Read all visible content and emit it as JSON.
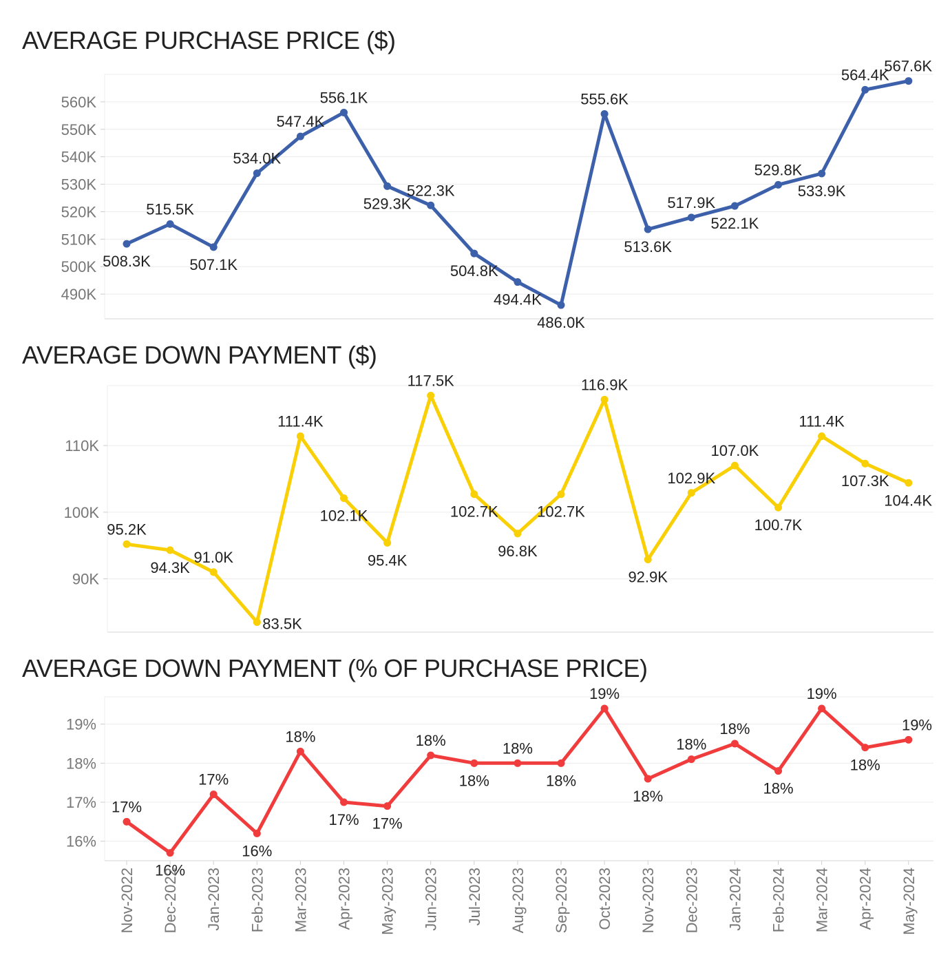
{
  "chart_data": [
    {
      "type": "line",
      "title": "AVERAGE PURCHASE PRICE ($)",
      "color": "#3d60ab",
      "categories": [
        "Nov-2022",
        "Dec-2022",
        "Jan-2023",
        "Feb-2023",
        "Mar-2023",
        "Apr-2023",
        "May-2023",
        "Jun-2023",
        "Jul-2023",
        "Aug-2023",
        "Sep-2023",
        "Oct-2023",
        "Nov-2023",
        "Dec-2023",
        "Jan-2024",
        "Feb-2024",
        "Mar-2024",
        "Apr-2024",
        "May-2024"
      ],
      "values": [
        508.3,
        515.5,
        507.1,
        534.0,
        547.4,
        556.1,
        529.3,
        522.3,
        504.8,
        494.4,
        486.0,
        555.6,
        513.6,
        517.9,
        522.1,
        529.8,
        533.9,
        564.4,
        567.6
      ],
      "value_unit": "K",
      "labels": [
        "508.3K",
        "515.5K",
        "507.1K",
        "534.0K",
        "547.4K",
        "556.1K",
        "529.3K",
        "522.3K",
        "504.8K",
        "494.4K",
        "486.0K",
        "555.6K",
        "513.6K",
        "517.9K",
        "522.1K",
        "529.8K",
        "533.9K",
        "564.4K",
        "567.6K"
      ],
      "label_positions": [
        "below",
        "above",
        "below",
        "above",
        "above",
        "above",
        "below",
        "above",
        "below",
        "below",
        "below",
        "above",
        "below",
        "above",
        "below",
        "above",
        "below",
        "above",
        "above"
      ],
      "yticks": [
        490,
        500,
        510,
        520,
        530,
        540,
        550,
        560
      ],
      "ytick_labels": [
        "490K",
        "500K",
        "510K",
        "520K",
        "530K",
        "540K",
        "550K",
        "560K"
      ],
      "ylim": [
        481,
        570
      ],
      "grid": true
    },
    {
      "type": "line",
      "title": "AVERAGE DOWN PAYMENT ($)",
      "color": "#f9cf05",
      "categories": [
        "Nov-2022",
        "Dec-2022",
        "Jan-2023",
        "Feb-2023",
        "Mar-2023",
        "Apr-2023",
        "May-2023",
        "Jun-2023",
        "Jul-2023",
        "Aug-2023",
        "Sep-2023",
        "Oct-2023",
        "Nov-2023",
        "Dec-2023",
        "Jan-2024",
        "Feb-2024",
        "Mar-2024",
        "Apr-2024",
        "May-2024"
      ],
      "values": [
        95.2,
        94.3,
        91.0,
        83.5,
        111.4,
        102.1,
        95.4,
        117.5,
        102.7,
        96.8,
        102.7,
        116.9,
        92.9,
        102.9,
        107.0,
        100.7,
        111.4,
        107.3,
        104.4
      ],
      "value_unit": "K",
      "labels": [
        "95.2K",
        "94.3K",
        "91.0K",
        "83.5K",
        "111.4K",
        "102.1K",
        "95.4K",
        "117.5K",
        "102.7K",
        "96.8K",
        "102.7K",
        "116.9K",
        "92.9K",
        "102.9K",
        "107.0K",
        "100.7K",
        "111.4K",
        "107.3K",
        "104.4K"
      ],
      "label_positions": [
        "above",
        "below",
        "above",
        "right",
        "above",
        "below",
        "below",
        "above",
        "below",
        "below",
        "below",
        "above",
        "below",
        "above",
        "above",
        "below",
        "above",
        "below",
        "below"
      ],
      "yticks": [
        90,
        100,
        110
      ],
      "ytick_labels": [
        "90K",
        "100K",
        "110K"
      ],
      "ylim": [
        82,
        119
      ],
      "grid": true
    },
    {
      "type": "line",
      "title": "AVERAGE DOWN PAYMENT (% OF PURCHASE PRICE)",
      "color": "#f03c3c",
      "categories": [
        "Nov-2022",
        "Dec-2022",
        "Jan-2023",
        "Feb-2023",
        "Mar-2023",
        "Apr-2023",
        "May-2023",
        "Jun-2023",
        "Jul-2023",
        "Aug-2023",
        "Sep-2023",
        "Oct-2023",
        "Nov-2023",
        "Dec-2023",
        "Jan-2024",
        "Feb-2024",
        "Mar-2024",
        "Apr-2024",
        "May-2024"
      ],
      "values": [
        16.5,
        15.7,
        17.2,
        16.2,
        18.3,
        17.0,
        16.9,
        18.2,
        18.0,
        18.0,
        18.0,
        19.4,
        17.6,
        18.1,
        18.5,
        17.8,
        19.4,
        18.4,
        18.6
      ],
      "value_unit": "%",
      "labels": [
        "17%",
        "16%",
        "17%",
        "16%",
        "18%",
        "17%",
        "17%",
        "18%",
        "18%",
        "18%",
        "18%",
        "19%",
        "18%",
        "18%",
        "18%",
        "18%",
        "19%",
        "18%",
        "19%"
      ],
      "label_positions": [
        "above",
        "below",
        "above",
        "below",
        "above",
        "below",
        "below",
        "above",
        "below",
        "above",
        "below",
        "above",
        "below",
        "above",
        "above",
        "below",
        "above",
        "below",
        "above"
      ],
      "yticks": [
        16,
        17,
        18,
        19
      ],
      "ytick_labels": [
        "16%",
        "17%",
        "18%",
        "19%"
      ],
      "ylim": [
        15.5,
        19.7
      ],
      "grid": true
    }
  ]
}
